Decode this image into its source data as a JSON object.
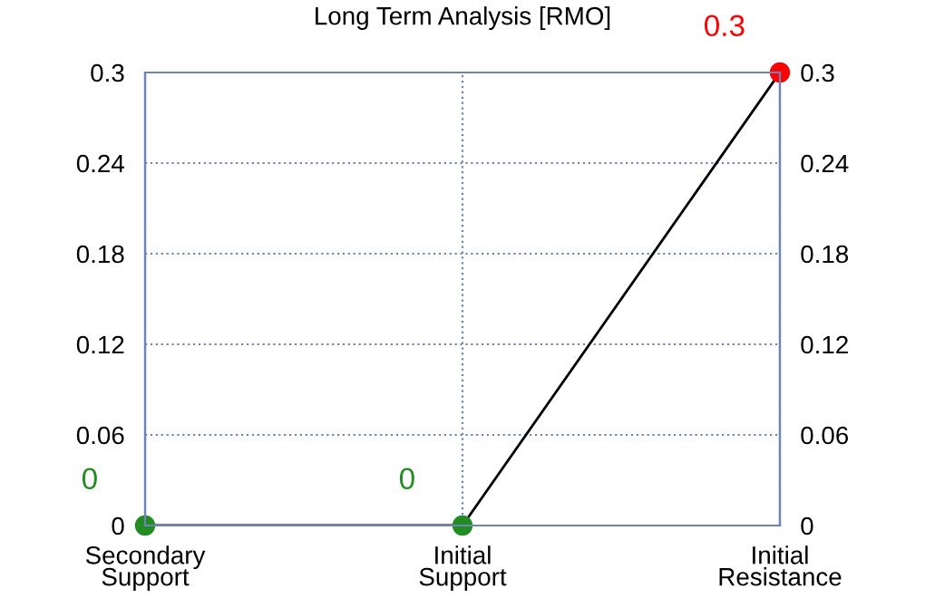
{
  "chart_data": {
    "type": "line",
    "title": "Long Term Analysis [RMO]",
    "categories": [
      "Secondary\nSupport",
      "Initial\nSupport",
      "Initial\nResistance"
    ],
    "series": [
      {
        "color": "#000000",
        "colors": [
          "#228b22",
          "#228b22",
          "#ff0000"
        ],
        "values": [
          0,
          0,
          0.3
        ]
      }
    ],
    "ylim": [
      0,
      0.3
    ],
    "yticks": [
      0,
      0.06,
      0.12,
      0.18,
      0.24,
      0.3
    ],
    "y2lim": [
      0,
      0.3
    ],
    "y2ticks": [
      0,
      0.06,
      0.12,
      0.18,
      0.24,
      0.3
    ],
    "grid": true,
    "marker": "circle",
    "line_style": "solid",
    "data_labels": true
  }
}
